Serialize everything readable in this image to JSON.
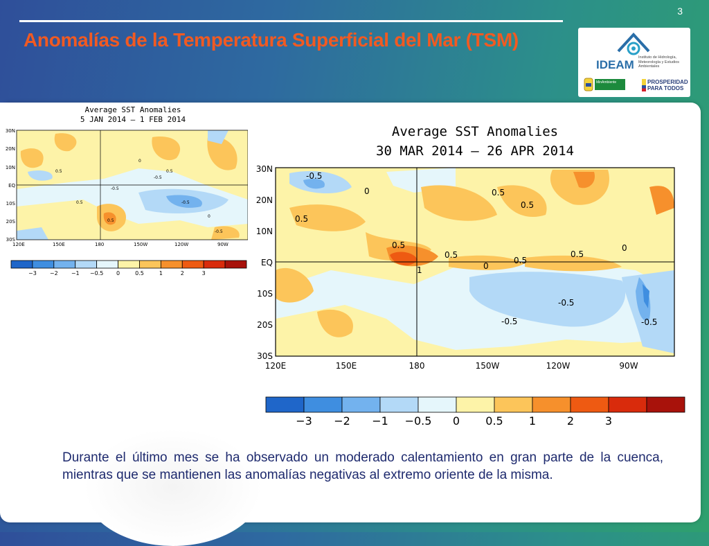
{
  "slide": {
    "number": "3",
    "title": "Anomalías de la Temperatura Superficial del Mar (TSM)",
    "description": "Durante el último mes se ha observado un moderado calentamiento en gran parte de la cuenca, mientras que se mantienen las anomalías negativas al extremo oriente de la misma."
  },
  "logos": {
    "ideam": "IDEAM",
    "institute": "Instituto de Hidrología, Meteorología y Estudios Ambientales",
    "ministry": "MinAmbiente",
    "prosperidad": "PROSPERIDAD PARA TODOS"
  },
  "maps": [
    {
      "title_line1": "Average SST Anomalies",
      "title_line2": "5 JAN 2014 – 1 FEB 2014",
      "lat_labels": [
        "30N",
        "20N",
        "10N",
        "EQ",
        "10S",
        "20S",
        "30S"
      ],
      "lon_labels": [
        "120E",
        "150E",
        "180",
        "150W",
        "120W",
        "90W"
      ],
      "contour_labels": [
        "0.5",
        "0.5",
        "-0.5",
        "-0.5",
        "0.5",
        "-0.5",
        "0.5",
        "-0.5",
        "0",
        "0"
      ]
    },
    {
      "title_line1": "Average SST Anomalies",
      "title_line2": "30 MAR 2014 – 26 APR 2014",
      "lat_labels": [
        "30N",
        "20N",
        "10N",
        "EQ",
        "10S",
        "20S",
        "30S"
      ],
      "lon_labels": [
        "120E",
        "150E",
        "180",
        "150W",
        "120W",
        "90W"
      ],
      "contour_labels": [
        "-0.5",
        "0",
        "0.5",
        "0.5",
        "0.5",
        "0.5",
        "0.5",
        "1",
        "0.5",
        "0.5",
        "-0.5",
        "-0.5",
        "-0.5",
        "0",
        "0"
      ]
    }
  ],
  "colorbar": {
    "ticks": [
      "−3",
      "−2",
      "−1",
      "−0.5",
      "0",
      "0.5",
      "1",
      "2",
      "3"
    ],
    "colors": [
      "#1f66c9",
      "#3f8ee0",
      "#73b2ee",
      "#b3d9f7",
      "#e5f6fb",
      "#fdf3a8",
      "#fcc55a",
      "#f6902c",
      "#ee5a12",
      "#d92b0c",
      "#a8120b"
    ]
  }
}
